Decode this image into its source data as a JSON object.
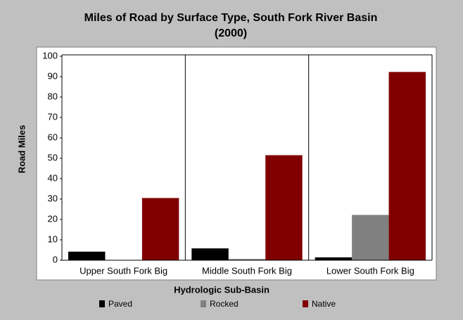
{
  "chart_data": {
    "type": "bar",
    "title": "Miles of Road by Surface Type, South Fork River Basin",
    "subtitle": "(2000)",
    "x_label": "Hydrologic Sub-Basin",
    "y_label": "Road Miles",
    "categories": [
      "Upper South Fork Big",
      "Middle South Fork Big",
      "Lower South Fork Big"
    ],
    "series": [
      {
        "name": "Paved",
        "color": "#000000",
        "values": [
          4.2,
          5.8,
          1.4
        ]
      },
      {
        "name": "Rocked",
        "color": "#808080",
        "values": [
          0,
          0.6,
          22.2
        ]
      },
      {
        "name": "Native",
        "color": "#800000",
        "values": [
          30.5,
          51.5,
          92.3
        ]
      }
    ],
    "ylim": [
      0,
      100
    ],
    "yticks": [
      0,
      10,
      20,
      30,
      40,
      50,
      60,
      70,
      80,
      90,
      100
    ],
    "grid": false,
    "legend": "bottom"
  }
}
